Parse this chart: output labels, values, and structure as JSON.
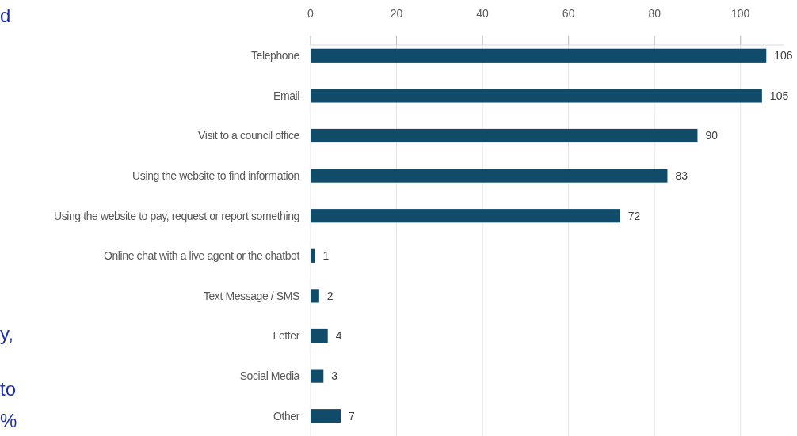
{
  "chart_data": {
    "type": "bar",
    "orientation": "horizontal",
    "categories": [
      "Telephone",
      "Email",
      "Visit to a council office",
      "Using the website to find information",
      "Using the website to pay, request or report something",
      "Online chat with a live agent or the chatbot",
      "Text Message / SMS",
      "Letter",
      "Social Media",
      "Other"
    ],
    "values": [
      106,
      105,
      90,
      83,
      72,
      1,
      2,
      4,
      3,
      7
    ],
    "color": "#114b6a",
    "xlim": [
      0,
      110
    ],
    "xticks": [
      0,
      20,
      40,
      60,
      80,
      100
    ],
    "grid": "x",
    "data_labels": true,
    "annotations": [
      "d",
      "y,",
      "to",
      "%"
    ]
  }
}
